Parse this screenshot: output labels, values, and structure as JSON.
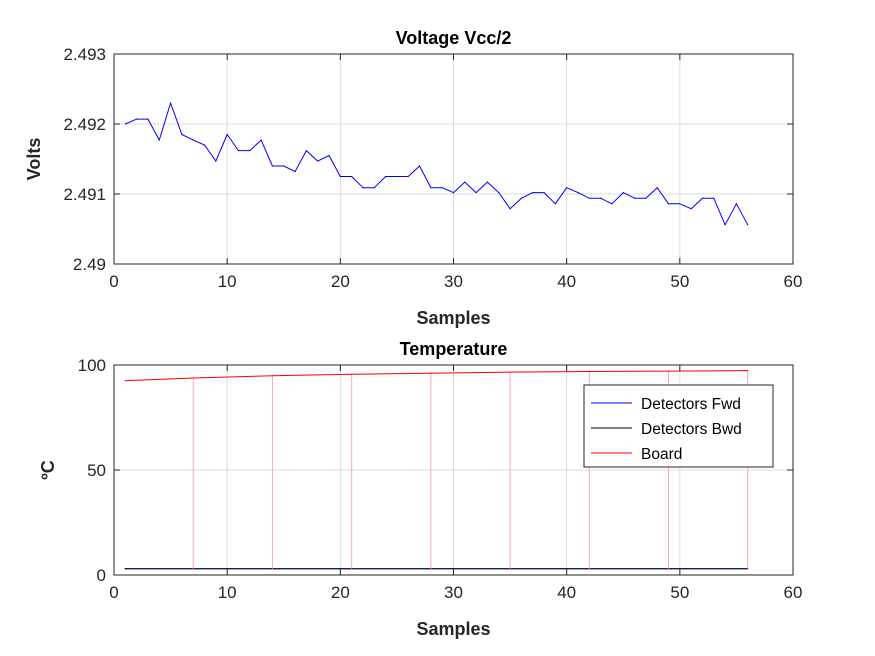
{
  "chart_data": [
    {
      "type": "line",
      "title": "Voltage Vcc/2",
      "xlabel": "Samples",
      "ylabel": "Volts",
      "xlim": [
        0,
        60
      ],
      "ylim": [
        2.49,
        2.493
      ],
      "xticks": [
        0,
        10,
        20,
        30,
        40,
        50,
        60
      ],
      "xtick_labels": [
        "0",
        "10",
        "20",
        "30",
        "40",
        "50",
        "60"
      ],
      "yticks": [
        2.49,
        2.491,
        2.492,
        2.493
      ],
      "ytick_labels": [
        "2.49",
        "2.491",
        "2.492",
        "2.493"
      ],
      "grid": true,
      "series": [
        {
          "color": "#0000ff",
          "x": [
            1,
            2,
            3,
            4,
            5,
            6,
            7,
            8,
            9,
            10,
            11,
            12,
            13,
            14,
            15,
            16,
            17,
            18,
            19,
            20,
            21,
            22,
            23,
            24,
            25,
            26,
            27,
            28,
            29,
            30,
            31,
            32,
            33,
            34,
            35,
            36,
            37,
            38,
            39,
            40,
            41,
            42,
            43,
            44,
            45,
            46,
            47,
            48,
            49,
            50,
            51,
            52,
            53,
            54,
            55,
            56
          ],
          "y": [
            2.492,
            2.49207,
            2.49207,
            2.49177,
            2.4923,
            2.49185,
            2.49177,
            2.4917,
            2.49147,
            2.49185,
            2.49162,
            2.49162,
            2.49177,
            2.4914,
            2.4914,
            2.49132,
            2.49162,
            2.49147,
            2.49155,
            2.49125,
            2.49125,
            2.49109,
            2.49109,
            2.49125,
            2.49125,
            2.49125,
            2.4914,
            2.49109,
            2.49109,
            2.49102,
            2.49117,
            2.49102,
            2.49117,
            2.49102,
            2.49079,
            2.49094,
            2.49102,
            2.49102,
            2.49086,
            2.49109,
            2.49102,
            2.49094,
            2.49094,
            2.49086,
            2.49102,
            2.49094,
            2.49094,
            2.49109,
            2.49086,
            2.49086,
            2.49079,
            2.49094,
            2.49094,
            2.49056,
            2.49086,
            2.49056
          ]
        }
      ]
    },
    {
      "type": "line",
      "title": "Temperature",
      "xlabel": "Samples",
      "ylabel": "ºC",
      "xlim": [
        0,
        60
      ],
      "ylim": [
        0,
        100
      ],
      "xticks": [
        0,
        10,
        20,
        30,
        40,
        50,
        60
      ],
      "xtick_labels": [
        "0",
        "10",
        "20",
        "30",
        "40",
        "50",
        "60"
      ],
      "yticks": [
        0,
        50,
        100
      ],
      "ytick_labels": [
        "0",
        "50",
        "100"
      ],
      "grid": true,
      "legend_position": "top-right",
      "series": [
        {
          "name": "Detectors Fwd",
          "color": "#0000ff",
          "x": [
            1,
            56
          ],
          "y": [
            3,
            3
          ]
        },
        {
          "name": "Detectors Bwd",
          "color": "#000000",
          "x": [
            1,
            56
          ],
          "y": [
            3,
            3
          ]
        },
        {
          "name": "Board",
          "color": "#ff0000",
          "x": [
            1,
            7,
            14,
            21,
            28,
            35,
            42,
            49,
            56
          ],
          "y": [
            92.5,
            93.8,
            94.9,
            95.6,
            96.1,
            96.6,
            96.9,
            97.1,
            97.3
          ],
          "drop_x": [
            7,
            14,
            21,
            28,
            35,
            42,
            49,
            56
          ],
          "drop_to": 3,
          "drop_color": "#ffaaaa"
        }
      ]
    }
  ]
}
